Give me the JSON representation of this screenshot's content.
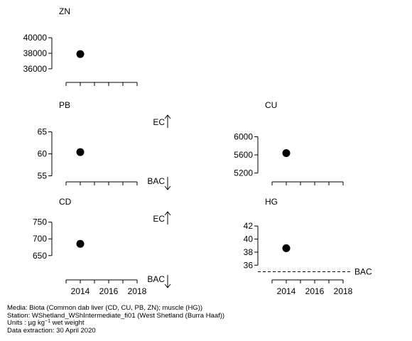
{
  "chart_data": [
    {
      "type": "scatter",
      "title": "ZN",
      "x": [
        2014
      ],
      "y": [
        37900
      ],
      "xlim": [
        2012.6,
        2018.3
      ],
      "ylim": [
        34800,
        41200
      ],
      "yticks": [
        "36000",
        "38000",
        "40000"
      ],
      "xticks": [
        "2014",
        "2016",
        "2018"
      ],
      "show_xtick_labels": false,
      "annotations": []
    },
    {
      "type": "scatter",
      "title": "PB",
      "x": [
        2014
      ],
      "y": [
        60.4
      ],
      "xlim": [
        2012.6,
        2018.3
      ],
      "ylim": [
        54.6,
        67.2
      ],
      "yticks": [
        "55",
        "60",
        "65"
      ],
      "xticks": [
        "2014",
        "2016",
        "2018"
      ],
      "show_xtick_labels": false,
      "annotations": [
        {
          "text": "EC",
          "direction": "up"
        },
        {
          "text": "BAC",
          "direction": "down"
        }
      ]
    },
    {
      "type": "scatter",
      "title": "CU",
      "x": [
        2014
      ],
      "y": [
        5640
      ],
      "xlim": [
        2012.6,
        2018.3
      ],
      "ylim": [
        5100,
        6320
      ],
      "yticks": [
        "5200",
        "5600",
        "6000"
      ],
      "xticks": [
        "2014",
        "2016",
        "2018"
      ],
      "show_xtick_labels": false,
      "annotations": []
    },
    {
      "type": "scatter",
      "title": "CD",
      "x": [
        2014
      ],
      "y": [
        685
      ],
      "xlim": [
        2012.6,
        2018.3
      ],
      "ylim": [
        590,
        760
      ],
      "yticks": [
        "650",
        "700",
        "750"
      ],
      "xticks": [
        "2014",
        "2016",
        "2018"
      ],
      "show_xtick_labels": true,
      "annotations": [
        {
          "text": "EC",
          "direction": "up"
        },
        {
          "text": "BAC",
          "direction": "down"
        }
      ]
    },
    {
      "type": "scatter",
      "title": "HG",
      "x": [
        2014
      ],
      "y": [
        38.6
      ],
      "xlim": [
        2012.6,
        2018.3
      ],
      "ylim": [
        34.4,
        43.1
      ],
      "yticks": [
        "36",
        "38",
        "40",
        "42"
      ],
      "xticks": [
        "2014",
        "2016",
        "2018"
      ],
      "show_xtick_labels": true,
      "reference_line": {
        "label": "BAC",
        "y": 35.0,
        "style": "dashed"
      },
      "annotations": []
    }
  ],
  "footer": {
    "media": "Media: Biota (Common dab liver (CD, CU, PB, ZN); muscle (HG))",
    "station": "Station: WShetland_WShIntermediate_fi01 (West Shetland (Burra Haaf))",
    "units_prefix": "Units : ",
    "units_mu": "µg kg",
    "units_exp": "−1",
    "units_suffix": " wet weight",
    "extraction": "Data extraction: 30 April 2020"
  }
}
